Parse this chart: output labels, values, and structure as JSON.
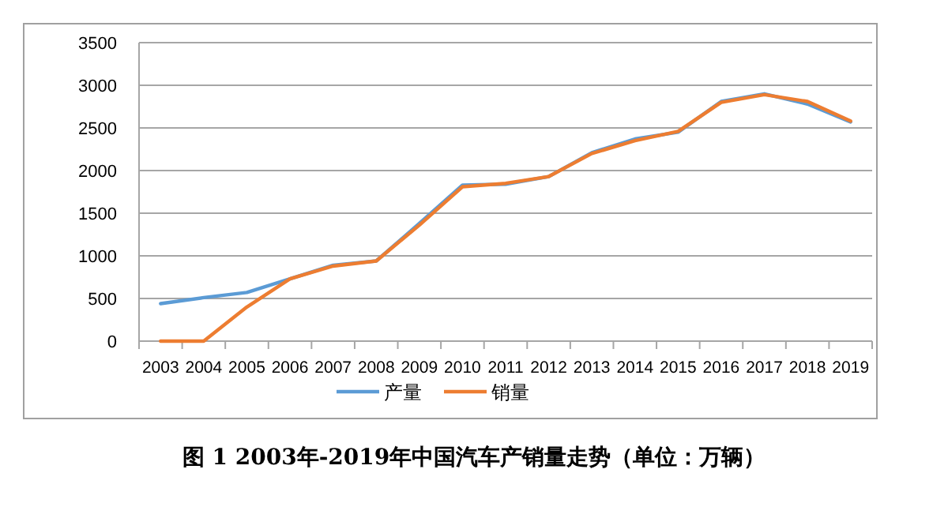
{
  "chart_data": {
    "type": "line",
    "title": "图 1 2003年-2019年中国汽车产销量走势（单位：万辆）",
    "categories": [
      "2003",
      "2004",
      "2005",
      "2006",
      "2007",
      "2008",
      "2009",
      "2010",
      "2011",
      "2012",
      "2013",
      "2014",
      "2015",
      "2016",
      "2017",
      "2018",
      "2019"
    ],
    "series": [
      {
        "name": "产量",
        "color": "#5b9bd5",
        "values": [
          440,
          510,
          570,
          730,
          890,
          940,
          1380,
          1830,
          1840,
          1930,
          2210,
          2370,
          2450,
          2810,
          2900,
          2780,
          2570
        ]
      },
      {
        "name": "销量",
        "color": "#ed7d31",
        "values": [
          0,
          0,
          400,
          730,
          880,
          940,
          1360,
          1810,
          1850,
          1930,
          2200,
          2350,
          2460,
          2800,
          2890,
          2810,
          2580
        ]
      }
    ],
    "ylim": [
      0,
      3500
    ],
    "yticks": [
      0,
      500,
      1000,
      1500,
      2000,
      2500,
      3000,
      3500
    ],
    "grid": "y",
    "legend": "bottom",
    "marker": "none",
    "line_style": "solid"
  }
}
